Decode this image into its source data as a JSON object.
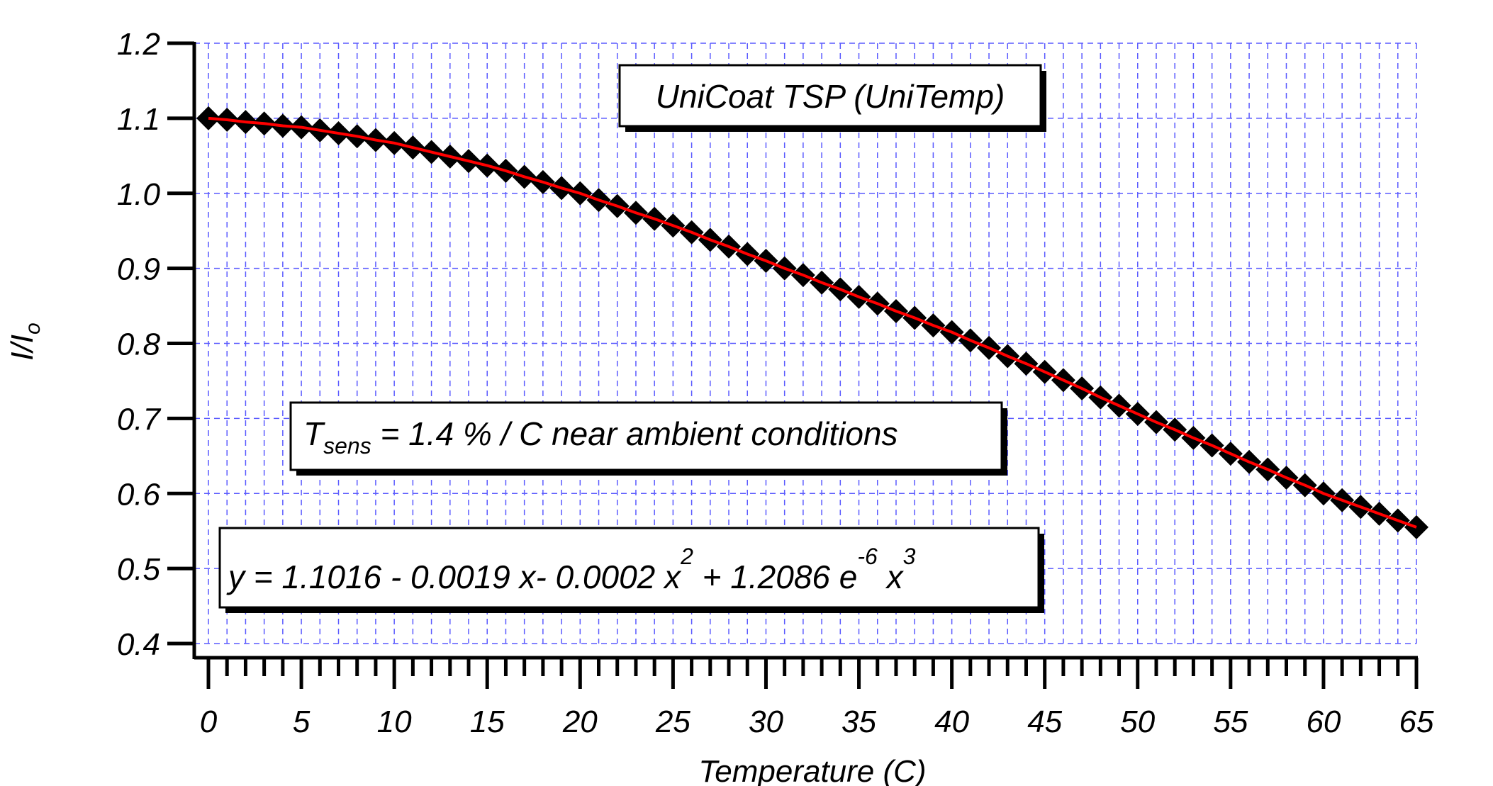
{
  "chart_data": {
    "type": "scatter",
    "xlabel": "Temperature (C)",
    "ylabel": "I/I",
    "ylabel_sub": "o",
    "xlim": [
      0,
      65
    ],
    "ylim": [
      0.4,
      1.2
    ],
    "x_ticks": [
      "0",
      "5",
      "10",
      "15",
      "20",
      "25",
      "30",
      "35",
      "40",
      "45",
      "50",
      "55",
      "60",
      "65"
    ],
    "y_ticks": [
      "0.4",
      "0.5",
      "0.6",
      "0.7",
      "0.8",
      "0.9",
      "1.0",
      "1.1",
      "1.2"
    ],
    "grid": true,
    "grid_color": "#5a5aff",
    "marker": "diamond",
    "marker_color": "#000000",
    "fit_line_color": "#ff0000",
    "series": [
      {
        "x": [
          0,
          1,
          2,
          3,
          4,
          5,
          6,
          7,
          8,
          9,
          10,
          11,
          12,
          13,
          14,
          15,
          16,
          17,
          18,
          19,
          20,
          21,
          22,
          23,
          24,
          25,
          26,
          27,
          28,
          29,
          30,
          31,
          32,
          33,
          34,
          35,
          36,
          37,
          38,
          39,
          40,
          41,
          42,
          43,
          44,
          45,
          46,
          47,
          48,
          49,
          50,
          51,
          52,
          53,
          54,
          55,
          56,
          57,
          58,
          59,
          60,
          61,
          62,
          63,
          64,
          65
        ],
        "y": [
          1.1,
          1.098,
          1.095,
          1.093,
          1.09,
          1.088,
          1.084,
          1.08,
          1.076,
          1.071,
          1.067,
          1.061,
          1.055,
          1.049,
          1.043,
          1.037,
          1.03,
          1.022,
          1.015,
          1.007,
          1.0,
          0.991,
          0.983,
          0.974,
          0.966,
          0.957,
          0.948,
          0.938,
          0.929,
          0.919,
          0.91,
          0.9,
          0.891,
          0.881,
          0.872,
          0.862,
          0.853,
          0.843,
          0.834,
          0.824,
          0.815,
          0.804,
          0.794,
          0.783,
          0.773,
          0.762,
          0.751,
          0.74,
          0.728,
          0.717,
          0.706,
          0.695,
          0.685,
          0.674,
          0.664,
          0.653,
          0.642,
          0.632,
          0.621,
          0.611,
          0.6,
          0.591,
          0.582,
          0.573,
          0.564,
          0.555
        ]
      }
    ],
    "annotations": {
      "title_box": "UniCoat TSP (UniTemp)",
      "tsens_main": "T",
      "tsens_sub": "sens",
      "tsens_rest": " = 1.4 % / C near ambient conditions",
      "eq_part1": "y = 1.1016 - 0.0019 x- 0.0002 x",
      "eq_sup1": "2",
      "eq_part2": " + 1.2086 e",
      "eq_sup2": "-6",
      "eq_part3": " x",
      "eq_sup3": "3"
    }
  }
}
